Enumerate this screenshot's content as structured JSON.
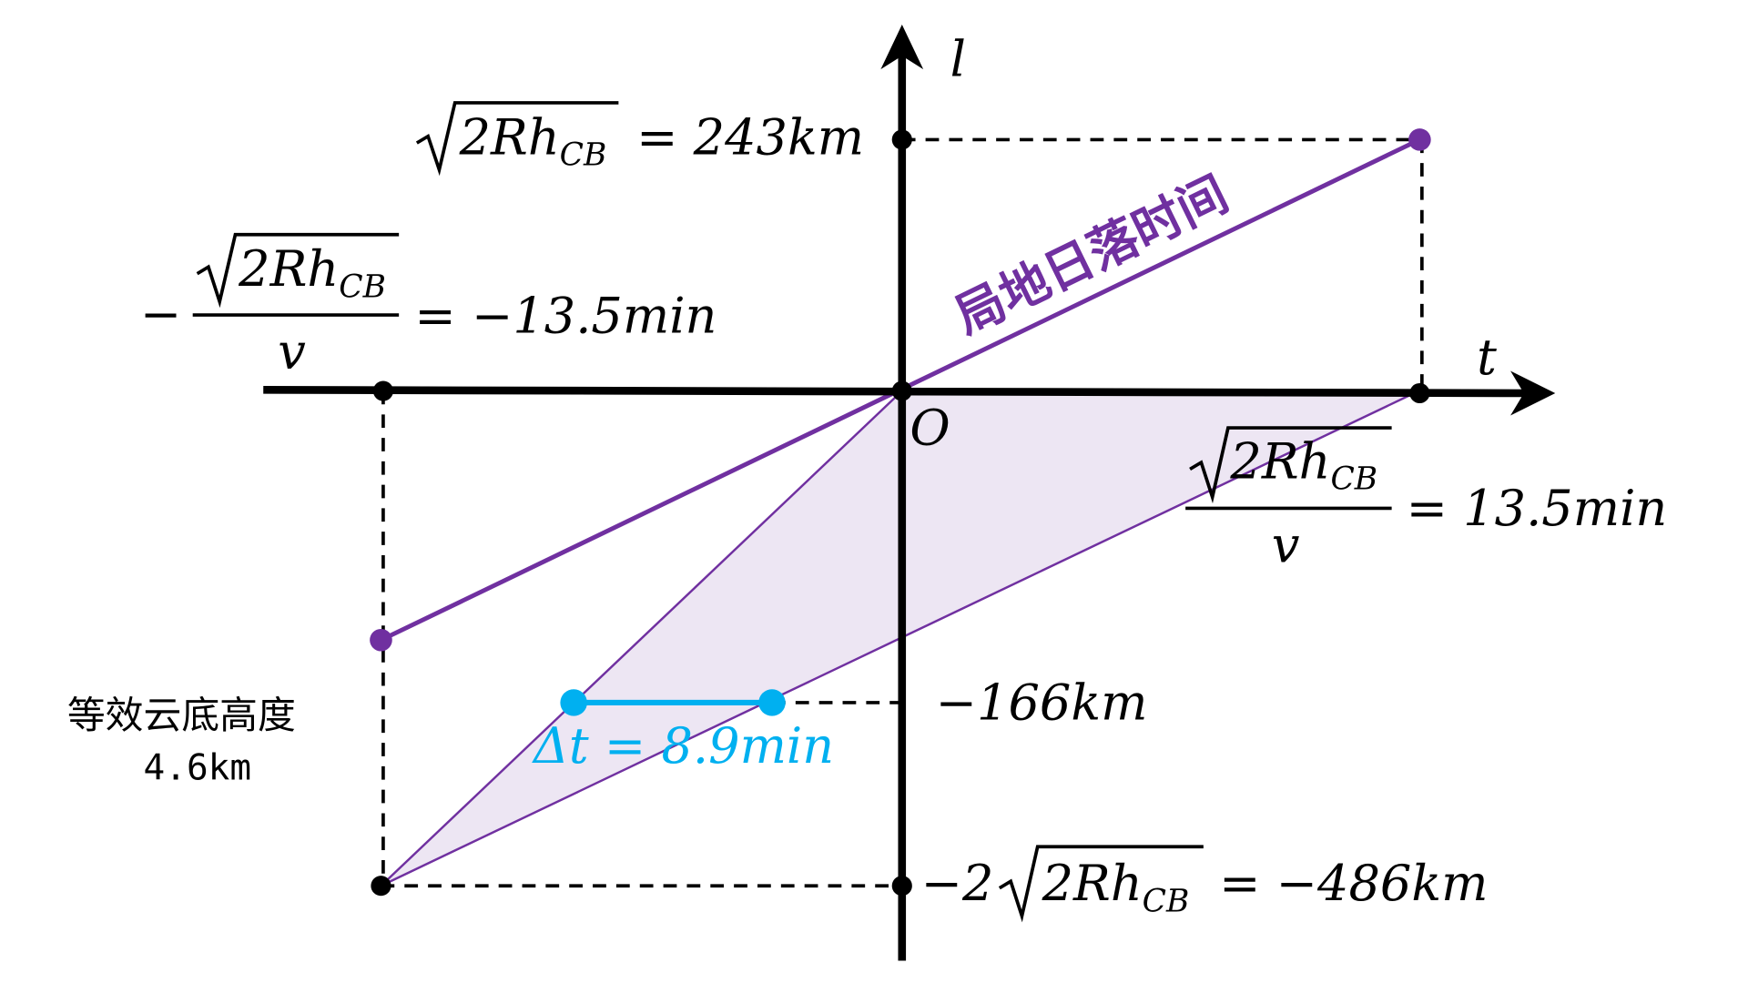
{
  "axes": {
    "x_label": "t",
    "y_label": "l",
    "origin_label": "O"
  },
  "labels": {
    "top_value": "= 243km",
    "top_expr": "2Rh",
    "sub": "CB",
    "left_time_value": "= −13.5min",
    "right_time_value": "= 13.5min",
    "v": "v",
    "minus": "−",
    "mid_value": "−166km",
    "bottom_prefix": "−2",
    "bottom_value": "= −486km",
    "delta_t": "Δt = 8.9min",
    "sunset_line": "局地日落时间",
    "cloud_base_line1": "等效云底高度",
    "cloud_base_line2": "4.6km"
  },
  "colors": {
    "purple": "#7030a0",
    "fill": "#ede6f3",
    "cyan": "#00b0f0",
    "axis": "#000000"
  }
}
